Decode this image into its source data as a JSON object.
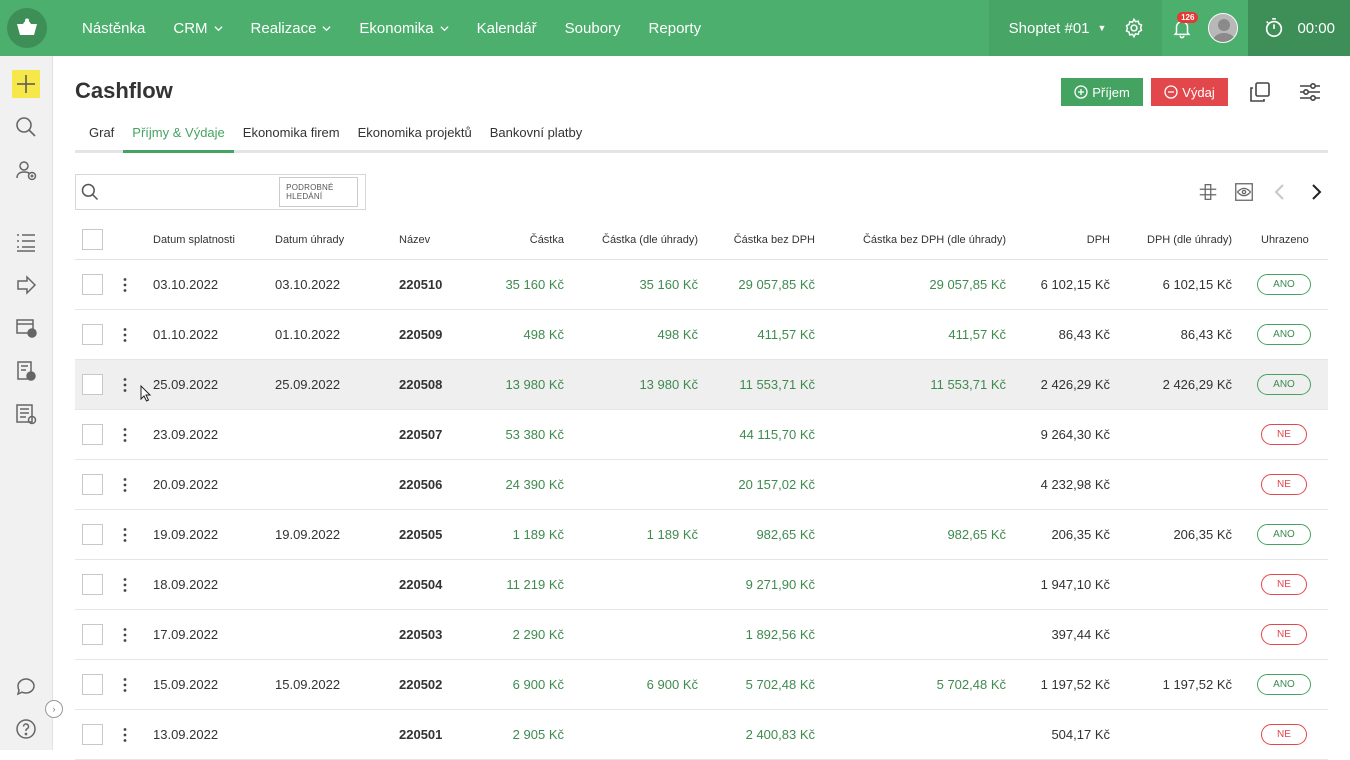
{
  "topbar": {
    "nav": [
      {
        "label": "Nástěnka",
        "dropdown": false
      },
      {
        "label": "CRM",
        "dropdown": true
      },
      {
        "label": "Realizace",
        "dropdown": true
      },
      {
        "label": "Ekonomika",
        "dropdown": true
      },
      {
        "label": "Kalendář",
        "dropdown": false
      },
      {
        "label": "Soubory",
        "dropdown": false
      },
      {
        "label": "Reporty",
        "dropdown": false
      }
    ],
    "shop_name": "Shoptet #01",
    "notifications_count": "126",
    "timer": "00:00"
  },
  "page": {
    "title": "Cashflow",
    "income_button": "Příjem",
    "expense_button": "Výdaj"
  },
  "tabs": [
    {
      "label": "Graf",
      "active": false
    },
    {
      "label": "Příjmy & Výdaje",
      "active": true
    },
    {
      "label": "Ekonomika firem",
      "active": false
    },
    {
      "label": "Ekonomika projektů",
      "active": false
    },
    {
      "label": "Bankovní platby",
      "active": false
    }
  ],
  "search": {
    "placeholder": "",
    "advanced_label": "PODROBNÉ HLEDÁNÍ"
  },
  "table": {
    "headers": {
      "due_date": "Datum splatnosti",
      "pay_date": "Datum úhrady",
      "name": "Název",
      "amount": "Částka",
      "amount_paid": "Částka (dle úhrady)",
      "net": "Částka bez DPH",
      "net_paid": "Částka bez DPH (dle úhrady)",
      "vat": "DPH",
      "vat_paid": "DPH (dle úhrady)",
      "paid": "Uhrazeno"
    },
    "rows": [
      {
        "due_date": "03.10.2022",
        "pay_date": "03.10.2022",
        "name": "220510",
        "amount": "35 160 Kč",
        "amount_paid": "35 160 Kč",
        "net": "29 057,85 Kč",
        "net_paid": "29 057,85 Kč",
        "vat": "6 102,15 Kč",
        "vat_paid": "6 102,15 Kč",
        "paid": "ANO"
      },
      {
        "due_date": "01.10.2022",
        "pay_date": "01.10.2022",
        "name": "220509",
        "amount": "498 Kč",
        "amount_paid": "498 Kč",
        "net": "411,57 Kč",
        "net_paid": "411,57 Kč",
        "vat": "86,43 Kč",
        "vat_paid": "86,43 Kč",
        "paid": "ANO"
      },
      {
        "due_date": "25.09.2022",
        "pay_date": "25.09.2022",
        "name": "220508",
        "amount": "13 980 Kč",
        "amount_paid": "13 980 Kč",
        "net": "11 553,71 Kč",
        "net_paid": "11 553,71 Kč",
        "vat": "2 426,29 Kč",
        "vat_paid": "2 426,29 Kč",
        "paid": "ANO"
      },
      {
        "due_date": "23.09.2022",
        "pay_date": "",
        "name": "220507",
        "amount": "53 380 Kč",
        "amount_paid": "",
        "net": "44 115,70 Kč",
        "net_paid": "",
        "vat": "9 264,30 Kč",
        "vat_paid": "",
        "paid": "NE"
      },
      {
        "due_date": "20.09.2022",
        "pay_date": "",
        "name": "220506",
        "amount": "24 390 Kč",
        "amount_paid": "",
        "net": "20 157,02 Kč",
        "net_paid": "",
        "vat": "4 232,98 Kč",
        "vat_paid": "",
        "paid": "NE"
      },
      {
        "due_date": "19.09.2022",
        "pay_date": "19.09.2022",
        "name": "220505",
        "amount": "1 189 Kč",
        "amount_paid": "1 189 Kč",
        "net": "982,65 Kč",
        "net_paid": "982,65 Kč",
        "vat": "206,35 Kč",
        "vat_paid": "206,35 Kč",
        "paid": "ANO"
      },
      {
        "due_date": "18.09.2022",
        "pay_date": "",
        "name": "220504",
        "amount": "11 219 Kč",
        "amount_paid": "",
        "net": "9 271,90 Kč",
        "net_paid": "",
        "vat": "1 947,10 Kč",
        "vat_paid": "",
        "paid": "NE"
      },
      {
        "due_date": "17.09.2022",
        "pay_date": "",
        "name": "220503",
        "amount": "2 290 Kč",
        "amount_paid": "",
        "net": "1 892,56 Kč",
        "net_paid": "",
        "vat": "397,44 Kč",
        "vat_paid": "",
        "paid": "NE"
      },
      {
        "due_date": "15.09.2022",
        "pay_date": "15.09.2022",
        "name": "220502",
        "amount": "6 900 Kč",
        "amount_paid": "6 900 Kč",
        "net": "5 702,48 Kč",
        "net_paid": "5 702,48 Kč",
        "vat": "1 197,52 Kč",
        "vat_paid": "1 197,52 Kč",
        "paid": "ANO"
      },
      {
        "due_date": "13.09.2022",
        "pay_date": "",
        "name": "220501",
        "amount": "2 905 Kč",
        "amount_paid": "",
        "net": "2 400,83 Kč",
        "net_paid": "",
        "vat": "504,17 Kč",
        "vat_paid": "",
        "paid": "NE"
      }
    ]
  },
  "colors": {
    "brand": "#4caf6e",
    "income": "#45a362",
    "expense": "#e2474c",
    "highlight": "#f6e84b"
  },
  "icons": [
    "app-logo-icon",
    "chevron-down-icon",
    "gear-icon",
    "bell-icon",
    "avatar",
    "stopwatch-icon",
    "plus-icon",
    "search-icon",
    "add-contact-icon",
    "task-list-icon",
    "export-icon",
    "invoice-icon",
    "expense-icon",
    "report-icon",
    "chat-icon",
    "help-icon",
    "copy-icon",
    "filter-settings-icon",
    "columns-toggle-icon",
    "eye-settings-icon",
    "chevron-left-icon",
    "chevron-right-icon",
    "more-vertical-icon"
  ]
}
